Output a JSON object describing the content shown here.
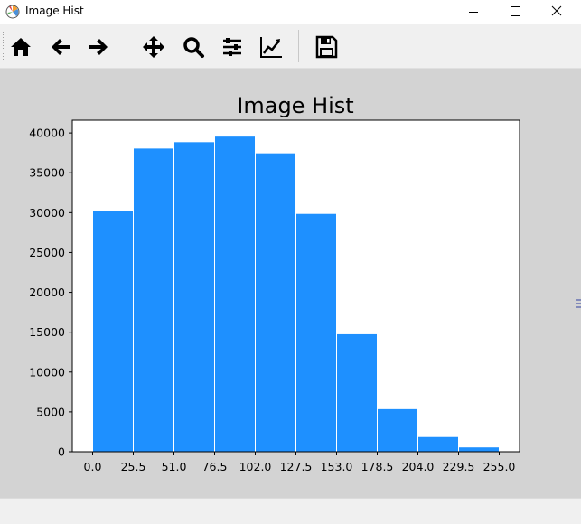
{
  "window": {
    "title": "Image Hist"
  },
  "toolbar": {
    "buttons": [
      {
        "name": "home-button",
        "icon": "home-icon"
      },
      {
        "name": "back-button",
        "icon": "arrow-left-icon"
      },
      {
        "name": "forward-button",
        "icon": "arrow-right-icon"
      },
      {
        "name": "pan-button",
        "icon": "move-icon"
      },
      {
        "name": "zoom-button",
        "icon": "magnifier-icon"
      },
      {
        "name": "subplots-button",
        "icon": "sliders-icon"
      },
      {
        "name": "edit-axes-button",
        "icon": "line-chart-icon"
      },
      {
        "name": "save-button",
        "icon": "floppy-disk-icon"
      }
    ]
  },
  "colors": {
    "bar": "#1e90ff",
    "bar_edge": "#ffffff",
    "figure_bg": "#d3d3d3",
    "axes_bg": "#ffffff"
  },
  "chart_data": {
    "type": "bar",
    "title": "Image Hist",
    "xlabel": "",
    "ylabel": "",
    "bin_edges": [
      0,
      25.5,
      51,
      76.5,
      102,
      127.5,
      153,
      178.5,
      204,
      229.5,
      255
    ],
    "values": [
      30300,
      38100,
      38900,
      39600,
      37500,
      29900,
      14800,
      5400,
      1900,
      600
    ],
    "xticks": [
      0,
      25.5,
      51,
      76.5,
      102,
      127.5,
      153,
      178.5,
      204,
      229.5,
      255
    ],
    "xtick_labels": [
      "0.0",
      "25.5",
      "51.0",
      "76.5",
      "102.0",
      "127.5",
      "153.0",
      "178.5",
      "204.0",
      "229.5",
      "255.0"
    ],
    "yticks": [
      0,
      5000,
      10000,
      15000,
      20000,
      25000,
      30000,
      35000,
      40000
    ],
    "ytick_labels": [
      "0",
      "5000",
      "10000",
      "15000",
      "20000",
      "25000",
      "30000",
      "35000",
      "40000"
    ],
    "xlim": [
      -12.75,
      267.75
    ],
    "ylim": [
      0,
      41600
    ],
    "grid": false,
    "legend": "none"
  }
}
